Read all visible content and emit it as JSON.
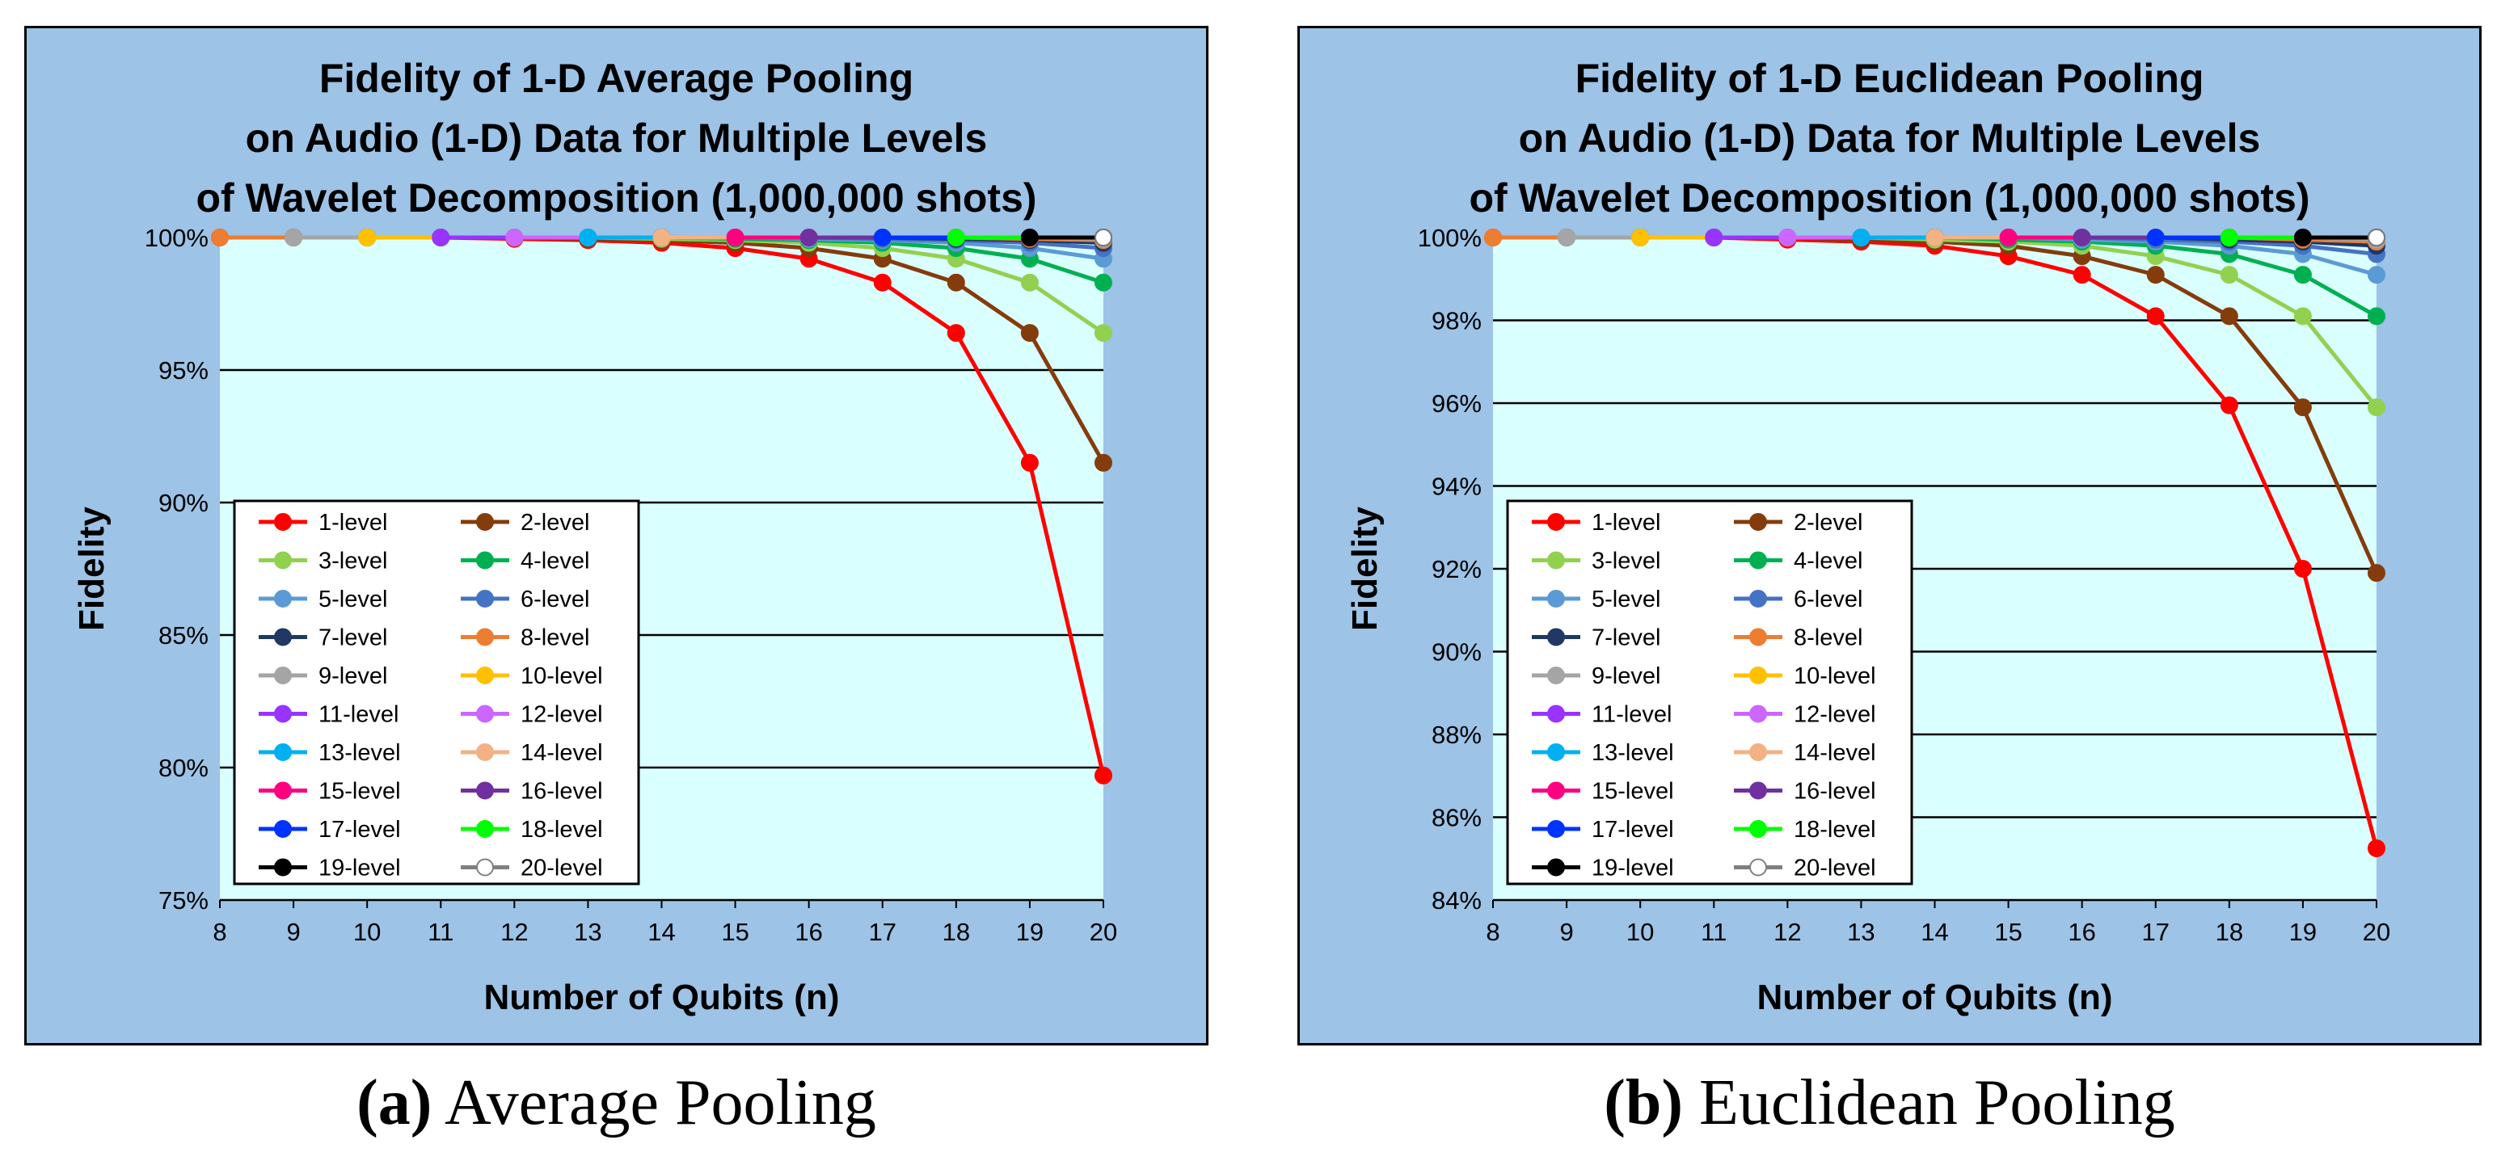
{
  "colors": {
    "panel_bg": "#9dc3e6",
    "plot_bg": "#daffff",
    "border": "#000000",
    "series": [
      "#ff0000",
      "#843c0c",
      "#92d050",
      "#00b050",
      "#5b9bd5",
      "#4472c4",
      "#203864",
      "#ed7d31",
      "#a5a5a5",
      "#ffc000",
      "#9933ff",
      "#cc66ff",
      "#00b0f0",
      "#f4b183",
      "#ff0080",
      "#7030a0",
      "#0033ff",
      "#00ff00",
      "#000000",
      "#ffffff"
    ]
  },
  "captions": {
    "a_label": "(a)",
    "a_text": "Average Pooling",
    "b_label": "(b)",
    "b_text": "Euclidean Pooling"
  },
  "chart_data": [
    {
      "type": "line",
      "id": "a",
      "title": [
        "Fidelity of 1-D Average Pooling",
        "on Audio (1-D) Data for Multiple Levels",
        "of Wavelet Decomposition (1,000,000 shots)"
      ],
      "xlabel": "Number of Qubits (n)",
      "ylabel": "Fidelity",
      "x": [
        8,
        9,
        10,
        11,
        12,
        13,
        14,
        15,
        16,
        17,
        18,
        19,
        20
      ],
      "xlim": [
        8,
        20
      ],
      "ylim": [
        75,
        100
      ],
      "yticks": [
        75,
        80,
        85,
        90,
        95,
        100
      ],
      "ytick_labels": [
        "75%",
        "80%",
        "85%",
        "90%",
        "95%",
        "100%"
      ],
      "legend_position": "bottom-left",
      "series": [
        {
          "name": "1-level",
          "values": [
            100,
            100,
            100,
            100,
            99.95,
            99.9,
            99.8,
            99.6,
            99.2,
            98.3,
            96.4,
            91.5,
            79.7
          ]
        },
        {
          "name": "2-level",
          "values": [
            null,
            100,
            100,
            100,
            100,
            99.95,
            99.9,
            99.8,
            99.6,
            99.2,
            98.3,
            96.4,
            91.5
          ]
        },
        {
          "name": "3-level",
          "values": [
            null,
            null,
            100,
            100,
            100,
            100,
            99.95,
            99.9,
            99.8,
            99.6,
            99.2,
            98.3,
            96.4
          ]
        },
        {
          "name": "4-level",
          "values": [
            null,
            null,
            null,
            100,
            100,
            100,
            100,
            99.95,
            99.9,
            99.8,
            99.6,
            99.2,
            98.3
          ]
        },
        {
          "name": "5-level",
          "values": [
            null,
            null,
            null,
            null,
            100,
            100,
            100,
            100,
            99.95,
            99.9,
            99.8,
            99.6,
            99.2
          ]
        },
        {
          "name": "6-level",
          "values": [
            null,
            null,
            null,
            null,
            null,
            100,
            100,
            100,
            100,
            99.95,
            99.9,
            99.8,
            99.6
          ]
        },
        {
          "name": "7-level",
          "values": [
            null,
            null,
            null,
            null,
            null,
            null,
            100,
            100,
            100,
            100,
            99.95,
            99.9,
            99.8
          ]
        },
        {
          "name": "8-level",
          "values": [
            100,
            null,
            null,
            null,
            null,
            null,
            null,
            100,
            100,
            100,
            100,
            99.95,
            99.9
          ]
        },
        {
          "name": "9-level",
          "values": [
            null,
            100,
            null,
            null,
            null,
            null,
            null,
            null,
            100,
            100,
            100,
            100,
            99.95
          ]
        },
        {
          "name": "10-level",
          "values": [
            null,
            null,
            100,
            null,
            null,
            null,
            null,
            null,
            null,
            100,
            100,
            100,
            100
          ]
        },
        {
          "name": "11-level",
          "values": [
            null,
            null,
            null,
            100,
            null,
            null,
            null,
            null,
            null,
            null,
            100,
            100,
            100
          ]
        },
        {
          "name": "12-level",
          "values": [
            null,
            null,
            null,
            null,
            100,
            null,
            null,
            null,
            null,
            null,
            null,
            100,
            100
          ]
        },
        {
          "name": "13-level",
          "values": [
            null,
            null,
            null,
            null,
            null,
            100,
            null,
            null,
            null,
            null,
            null,
            null,
            100
          ]
        },
        {
          "name": "14-level",
          "values": [
            null,
            null,
            null,
            null,
            null,
            null,
            100,
            null,
            null,
            null,
            null,
            null,
            100
          ]
        },
        {
          "name": "15-level",
          "values": [
            null,
            null,
            null,
            null,
            null,
            null,
            null,
            100,
            null,
            null,
            null,
            null,
            100
          ]
        },
        {
          "name": "16-level",
          "values": [
            null,
            null,
            null,
            null,
            null,
            null,
            null,
            null,
            100,
            null,
            null,
            null,
            100
          ]
        },
        {
          "name": "17-level",
          "values": [
            null,
            null,
            null,
            null,
            null,
            null,
            null,
            null,
            null,
            100,
            null,
            null,
            100
          ]
        },
        {
          "name": "18-level",
          "values": [
            null,
            null,
            null,
            null,
            null,
            null,
            null,
            null,
            null,
            null,
            100,
            null,
            100
          ]
        },
        {
          "name": "19-level",
          "values": [
            null,
            null,
            null,
            null,
            null,
            null,
            null,
            null,
            null,
            null,
            null,
            100,
            100
          ]
        },
        {
          "name": "20-level",
          "values": [
            null,
            null,
            null,
            null,
            null,
            null,
            null,
            null,
            null,
            null,
            null,
            null,
            100
          ]
        }
      ]
    },
    {
      "type": "line",
      "id": "b",
      "title": [
        "Fidelity of 1-D Euclidean Pooling",
        "on Audio (1-D) Data for Multiple Levels",
        "of Wavelet Decomposition (1,000,000 shots)"
      ],
      "xlabel": "Number of Qubits (n)",
      "ylabel": "Fidelity",
      "x": [
        8,
        9,
        10,
        11,
        12,
        13,
        14,
        15,
        16,
        17,
        18,
        19,
        20
      ],
      "xlim": [
        8,
        20
      ],
      "ylim": [
        84,
        100
      ],
      "yticks": [
        84,
        86,
        88,
        90,
        92,
        94,
        96,
        98,
        100
      ],
      "ytick_labels": [
        "84%",
        "86%",
        "88%",
        "90%",
        "92%",
        "94%",
        "96%",
        "98%",
        "100%"
      ],
      "legend_position": "bottom-left",
      "series": [
        {
          "name": "1-level",
          "values": [
            100,
            100,
            100,
            100,
            99.95,
            99.9,
            99.8,
            99.55,
            99.1,
            98.1,
            95.95,
            92.0,
            85.25
          ]
        },
        {
          "name": "2-level",
          "values": [
            null,
            100,
            100,
            100,
            100,
            99.95,
            99.9,
            99.8,
            99.55,
            99.1,
            98.1,
            95.9,
            91.9
          ]
        },
        {
          "name": "3-level",
          "values": [
            null,
            null,
            100,
            100,
            100,
            100,
            99.95,
            99.9,
            99.8,
            99.55,
            99.1,
            98.1,
            95.9
          ]
        },
        {
          "name": "4-level",
          "values": [
            null,
            null,
            null,
            100,
            100,
            100,
            100,
            99.95,
            99.9,
            99.8,
            99.6,
            99.1,
            98.1
          ]
        },
        {
          "name": "5-level",
          "values": [
            null,
            null,
            null,
            null,
            100,
            100,
            100,
            100,
            99.95,
            99.9,
            99.8,
            99.6,
            99.1
          ]
        },
        {
          "name": "6-level",
          "values": [
            null,
            null,
            null,
            null,
            null,
            100,
            100,
            100,
            100,
            99.95,
            99.9,
            99.8,
            99.6
          ]
        },
        {
          "name": "7-level",
          "values": [
            null,
            null,
            null,
            null,
            null,
            null,
            100,
            100,
            100,
            100,
            99.95,
            99.9,
            99.8
          ]
        },
        {
          "name": "8-level",
          "values": [
            100,
            null,
            null,
            null,
            null,
            null,
            null,
            100,
            100,
            100,
            100,
            99.95,
            99.9
          ]
        },
        {
          "name": "9-level",
          "values": [
            null,
            100,
            null,
            null,
            null,
            null,
            null,
            null,
            100,
            100,
            100,
            100,
            99.95
          ]
        },
        {
          "name": "10-level",
          "values": [
            null,
            null,
            100,
            null,
            null,
            null,
            null,
            null,
            null,
            100,
            100,
            100,
            100
          ]
        },
        {
          "name": "11-level",
          "values": [
            null,
            null,
            null,
            100,
            null,
            null,
            null,
            null,
            null,
            null,
            100,
            100,
            100
          ]
        },
        {
          "name": "12-level",
          "values": [
            null,
            null,
            null,
            null,
            100,
            null,
            null,
            null,
            null,
            null,
            null,
            100,
            100
          ]
        },
        {
          "name": "13-level",
          "values": [
            null,
            null,
            null,
            null,
            null,
            100,
            null,
            null,
            null,
            null,
            null,
            null,
            100
          ]
        },
        {
          "name": "14-level",
          "values": [
            null,
            null,
            null,
            null,
            null,
            null,
            100,
            null,
            null,
            null,
            null,
            null,
            100
          ]
        },
        {
          "name": "15-level",
          "values": [
            null,
            null,
            null,
            null,
            null,
            null,
            null,
            100,
            null,
            null,
            null,
            null,
            100
          ]
        },
        {
          "name": "16-level",
          "values": [
            null,
            null,
            null,
            null,
            null,
            null,
            null,
            null,
            100,
            null,
            null,
            null,
            100
          ]
        },
        {
          "name": "17-level",
          "values": [
            null,
            null,
            null,
            null,
            null,
            null,
            null,
            null,
            null,
            100,
            null,
            null,
            100
          ]
        },
        {
          "name": "18-level",
          "values": [
            null,
            null,
            null,
            null,
            null,
            null,
            null,
            null,
            null,
            null,
            100,
            null,
            100
          ]
        },
        {
          "name": "19-level",
          "values": [
            null,
            null,
            null,
            null,
            null,
            null,
            null,
            null,
            null,
            null,
            null,
            100,
            100
          ]
        },
        {
          "name": "20-level",
          "values": [
            null,
            null,
            null,
            null,
            null,
            null,
            null,
            null,
            null,
            null,
            null,
            null,
            100
          ]
        }
      ]
    }
  ]
}
